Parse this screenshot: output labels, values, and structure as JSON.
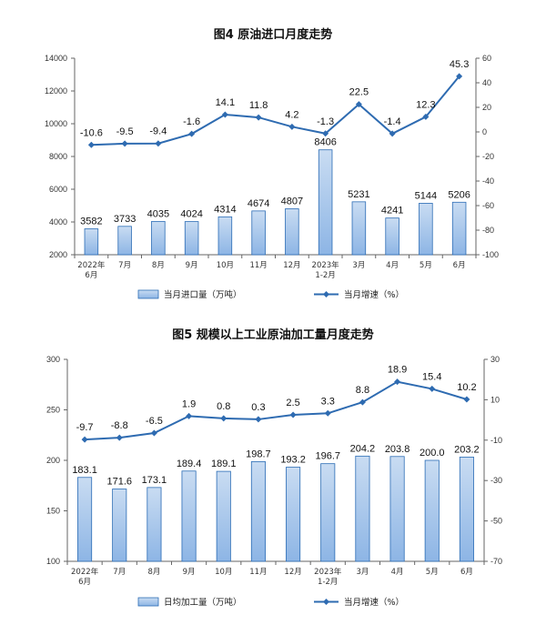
{
  "colors": {
    "bar_fill_top": "#c9dcf2",
    "bar_fill_bottom": "#8db5e5",
    "bar_stroke": "#2b6cb5",
    "line": "#2e6bb1",
    "axis": "#666666"
  },
  "chart_data": [
    {
      "type": "bar+line",
      "title": "图4  原油进口月度走势",
      "categories": [
        "2022年\n6月",
        "7月",
        "8月",
        "9月",
        "10月",
        "11月",
        "12月",
        "2023年\n1-2月",
        "3月",
        "4月",
        "5月",
        "6月"
      ],
      "series": [
        {
          "name": "当月进口量（万吨）",
          "type": "bar",
          "axis": "left",
          "values": [
            3582,
            3733,
            4035,
            4024,
            4314,
            4674,
            4807,
            8406,
            5231,
            4241,
            5144,
            5206
          ]
        },
        {
          "name": "当月增速（%）",
          "type": "line",
          "axis": "right",
          "values": [
            -10.6,
            -9.5,
            -9.4,
            -1.6,
            14.1,
            11.8,
            4.2,
            -1.3,
            22.5,
            -1.4,
            12.3,
            45.3
          ]
        }
      ],
      "ylim_left": [
        2000,
        14000
      ],
      "yticks_left": [
        2000,
        4000,
        6000,
        8000,
        10000,
        12000,
        14000
      ],
      "ylim_right": [
        -100,
        60
      ],
      "yticks_right": [
        -100,
        -80,
        -60,
        -40,
        -20,
        0,
        20,
        40,
        60
      ],
      "legend": "bottom"
    },
    {
      "type": "bar+line",
      "title": "图5  规模以上工业原油加工量月度走势",
      "categories": [
        "2022年\n6月",
        "7月",
        "8月",
        "9月",
        "10月",
        "11月",
        "12月",
        "2023年\n1-2月",
        "3月",
        "4月",
        "5月",
        "6月"
      ],
      "series": [
        {
          "name": "日均加工量（万吨）",
          "type": "bar",
          "axis": "left",
          "values": [
            183.1,
            171.6,
            173.1,
            189.4,
            189.1,
            198.7,
            193.2,
            196.7,
            204.2,
            203.8,
            200.0,
            203.2
          ]
        },
        {
          "name": "当月增速（%）",
          "type": "line",
          "axis": "right",
          "values": [
            -9.7,
            -8.8,
            -6.5,
            1.9,
            0.8,
            0.3,
            2.5,
            3.3,
            8.8,
            18.9,
            15.4,
            10.2
          ]
        }
      ],
      "ylim_left": [
        100,
        300
      ],
      "yticks_left": [
        100,
        150,
        200,
        250,
        300
      ],
      "ylim_right": [
        -70,
        30
      ],
      "yticks_right": [
        -70,
        -50,
        -30,
        -10,
        10,
        30
      ],
      "legend": "bottom"
    }
  ]
}
